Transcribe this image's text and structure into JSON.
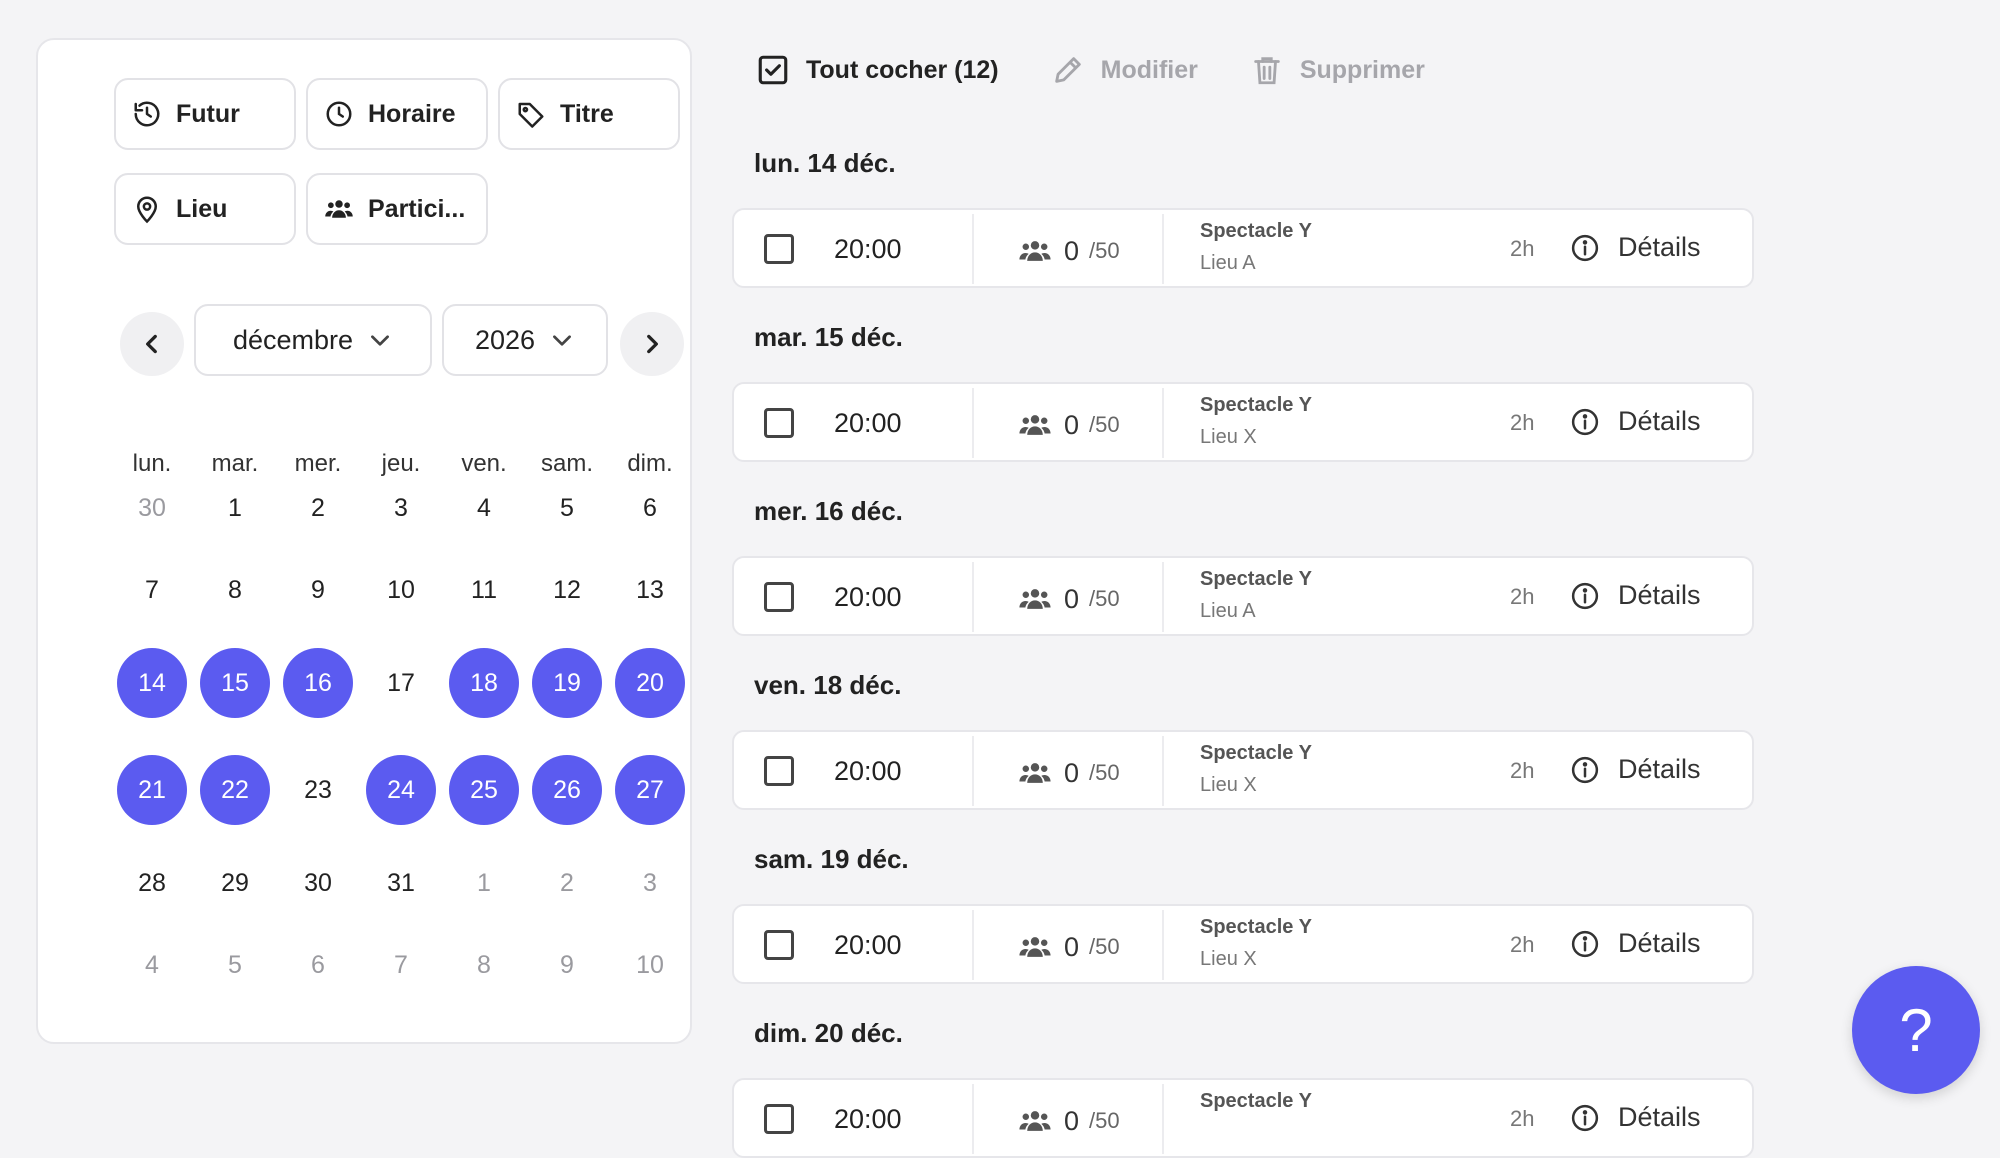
{
  "filters": [
    {
      "label": "Futur",
      "icon": "history-icon"
    },
    {
      "label": "Horaire",
      "icon": "clock-icon"
    },
    {
      "label": "Titre",
      "icon": "tag-icon"
    },
    {
      "label": "Lieu",
      "icon": "location-pin-icon"
    },
    {
      "label": "Partici...",
      "icon": "users-icon"
    }
  ],
  "calendar": {
    "month": "décembre",
    "year": "2026",
    "weekdays": [
      "lun.",
      "mar.",
      "mer.",
      "jeu.",
      "ven.",
      "sam.",
      "dim."
    ],
    "weeks": [
      [
        {
          "d": "30",
          "m": true
        },
        {
          "d": "1"
        },
        {
          "d": "2"
        },
        {
          "d": "3"
        },
        {
          "d": "4"
        },
        {
          "d": "5"
        },
        {
          "d": "6"
        }
      ],
      [
        {
          "d": "7"
        },
        {
          "d": "8"
        },
        {
          "d": "9"
        },
        {
          "d": "10"
        },
        {
          "d": "11"
        },
        {
          "d": "12"
        },
        {
          "d": "13"
        }
      ],
      [
        {
          "d": "14",
          "s": true
        },
        {
          "d": "15",
          "s": true
        },
        {
          "d": "16",
          "s": true
        },
        {
          "d": "17"
        },
        {
          "d": "18",
          "s": true
        },
        {
          "d": "19",
          "s": true
        },
        {
          "d": "20",
          "s": true
        }
      ],
      [
        {
          "d": "21",
          "s": true
        },
        {
          "d": "22",
          "s": true
        },
        {
          "d": "23"
        },
        {
          "d": "24",
          "s": true
        },
        {
          "d": "25",
          "s": true
        },
        {
          "d": "26",
          "s": true
        },
        {
          "d": "27",
          "s": true
        }
      ],
      [
        {
          "d": "28"
        },
        {
          "d": "29"
        },
        {
          "d": "30"
        },
        {
          "d": "31"
        },
        {
          "d": "1",
          "m": true
        },
        {
          "d": "2",
          "m": true
        },
        {
          "d": "3",
          "m": true
        }
      ],
      [
        {
          "d": "4",
          "m": true
        },
        {
          "d": "5",
          "m": true
        },
        {
          "d": "6",
          "m": true
        },
        {
          "d": "7",
          "m": true
        },
        {
          "d": "8",
          "m": true
        },
        {
          "d": "9",
          "m": true
        },
        {
          "d": "10",
          "m": true
        }
      ]
    ]
  },
  "toolbar": {
    "check_all": "Tout cocher (12)",
    "edit": "Modifier",
    "delete": "Supprimer"
  },
  "groups": [
    {
      "date": "lun. 14 déc.",
      "time": "20:00",
      "count": "0",
      "max": "/50",
      "title": "Spectacle Y",
      "lieu": "Lieu A",
      "duration": "2h",
      "details": "Détails"
    },
    {
      "date": "mar. 15 déc.",
      "time": "20:00",
      "count": "0",
      "max": "/50",
      "title": "Spectacle Y",
      "lieu": "Lieu X",
      "duration": "2h",
      "details": "Détails"
    },
    {
      "date": "mer. 16 déc.",
      "time": "20:00",
      "count": "0",
      "max": "/50",
      "title": "Spectacle Y",
      "lieu": "Lieu A",
      "duration": "2h",
      "details": "Détails"
    },
    {
      "date": "ven. 18 déc.",
      "time": "20:00",
      "count": "0",
      "max": "/50",
      "title": "Spectacle Y",
      "lieu": "Lieu X",
      "duration": "2h",
      "details": "Détails"
    },
    {
      "date": "sam. 19 déc.",
      "time": "20:00",
      "count": "0",
      "max": "/50",
      "title": "Spectacle Y",
      "lieu": "Lieu X",
      "duration": "2h",
      "details": "Détails"
    },
    {
      "date": "dim. 20 déc.",
      "time": "20:00",
      "count": "0",
      "max": "/50",
      "title": "Spectacle Y",
      "lieu": "",
      "duration": "2h",
      "details": "Détails"
    }
  ],
  "help": {
    "label": "?"
  },
  "colors": {
    "accent": "#5b5bf0"
  }
}
